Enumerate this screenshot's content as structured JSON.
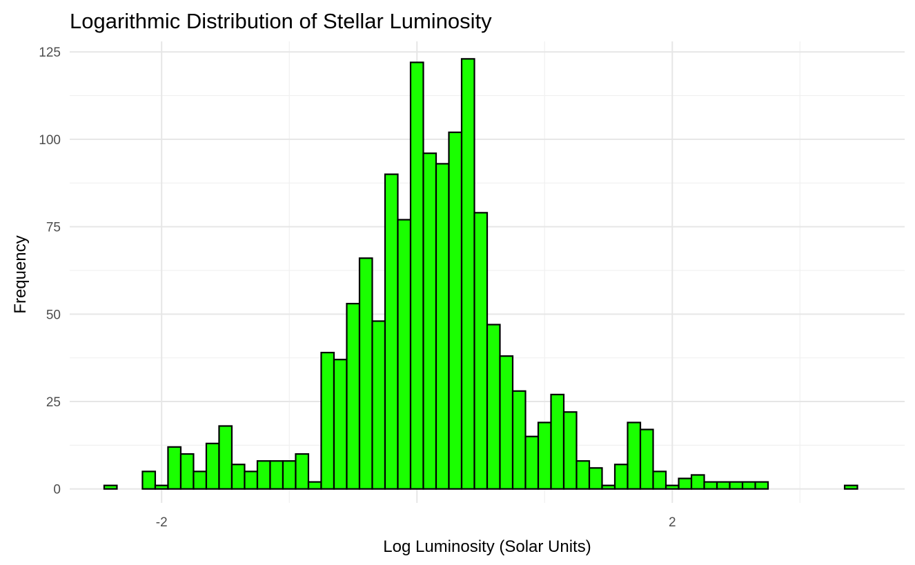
{
  "chart_data": {
    "type": "bar",
    "title": "Logarithmic Distribution of Stellar Luminosity",
    "xlabel": "Log Luminosity (Solar Units)",
    "ylabel": "Frequency",
    "xlim": [
      -2.72,
      3.82
    ],
    "ylim": [
      -4,
      128
    ],
    "x_ticks": [
      -2,
      2
    ],
    "y_ticks": [
      0,
      25,
      50,
      75,
      100,
      125
    ],
    "grid": true,
    "bar_fill": "#1aff00",
    "bar_outline": "#000000",
    "bin_width": 0.1,
    "bin_centers": [
      -2.4,
      -2.3,
      -2.2,
      -2.1,
      -2.0,
      -1.9,
      -1.8,
      -1.7,
      -1.6,
      -1.5,
      -1.4,
      -1.3,
      -1.2,
      -1.1,
      -1.0,
      -0.9,
      -0.8,
      -0.7,
      -0.6,
      -0.5,
      -0.4,
      -0.3,
      -0.2,
      -0.1,
      0.0,
      0.1,
      0.2,
      0.3,
      0.4,
      0.5,
      0.6,
      0.7,
      0.8,
      0.9,
      1.0,
      1.1,
      1.2,
      1.3,
      1.4,
      1.5,
      1.6,
      1.7,
      1.8,
      1.9,
      2.0,
      2.1,
      2.2,
      2.3,
      2.4,
      2.5,
      2.6,
      2.7,
      2.8,
      2.9,
      3.0,
      3.1,
      3.2,
      3.3,
      3.4
    ],
    "values": [
      1,
      0,
      0,
      5,
      1,
      12,
      10,
      5,
      13,
      18,
      7,
      5,
      8,
      8,
      8,
      10,
      2,
      39,
      37,
      53,
      66,
      48,
      90,
      77,
      122,
      96,
      93,
      102,
      123,
      79,
      47,
      38,
      28,
      15,
      19,
      27,
      22,
      8,
      6,
      1,
      7,
      19,
      17,
      5,
      1,
      3,
      4,
      2,
      2,
      2,
      2,
      2,
      0,
      0,
      0,
      0,
      0,
      0,
      1
    ]
  }
}
